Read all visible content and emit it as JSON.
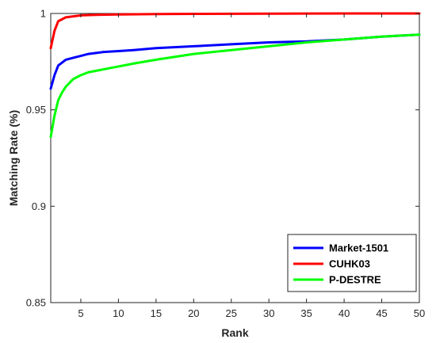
{
  "chart_data": {
    "type": "line",
    "title": "",
    "xlabel": "Rank",
    "ylabel": "Matching Rate (%)",
    "xlim": [
      1,
      50
    ],
    "ylim": [
      0.85,
      1.0
    ],
    "x_ticks": [
      5,
      10,
      15,
      20,
      25,
      30,
      35,
      40,
      45,
      50
    ],
    "y_ticks": [
      0.85,
      0.9,
      0.95,
      1.0
    ],
    "x_tick_labels": [
      "5",
      "10",
      "15",
      "20",
      "25",
      "30",
      "35",
      "40",
      "45",
      "50"
    ],
    "y_tick_labels": [
      "0.85",
      "0.9",
      "0.95",
      "1"
    ],
    "grid": false,
    "legend_position": "bottom-right",
    "series": [
      {
        "name": "Market-1501",
        "color": "#0000ff",
        "x": [
          1,
          1.5,
          2,
          3,
          4,
          5,
          6,
          7,
          8,
          10,
          12,
          15,
          20,
          25,
          30,
          35,
          40,
          45,
          50
        ],
        "values": [
          0.961,
          0.968,
          0.973,
          0.976,
          0.977,
          0.978,
          0.979,
          0.9795,
          0.98,
          0.9805,
          0.981,
          0.982,
          0.983,
          0.984,
          0.985,
          0.9855,
          0.9865,
          0.988,
          0.989
        ]
      },
      {
        "name": "CUHK03",
        "color": "#ff0000",
        "x": [
          1,
          1.5,
          2,
          3,
          4,
          5,
          7,
          10,
          15,
          20,
          30,
          40,
          50
        ],
        "values": [
          0.982,
          0.991,
          0.996,
          0.998,
          0.9985,
          0.999,
          0.9993,
          0.9995,
          0.9997,
          0.9998,
          0.9999,
          1.0,
          1.0
        ]
      },
      {
        "name": "P-DESTRE",
        "color": "#00ff00",
        "x": [
          1,
          1.5,
          2,
          2.5,
          3,
          4,
          5,
          6,
          8,
          10,
          12,
          15,
          20,
          25,
          30,
          35,
          40,
          45,
          50
        ],
        "values": [
          0.936,
          0.947,
          0.955,
          0.959,
          0.962,
          0.966,
          0.968,
          0.9695,
          0.971,
          0.9725,
          0.974,
          0.976,
          0.979,
          0.981,
          0.983,
          0.985,
          0.9865,
          0.988,
          0.989
        ]
      }
    ]
  }
}
